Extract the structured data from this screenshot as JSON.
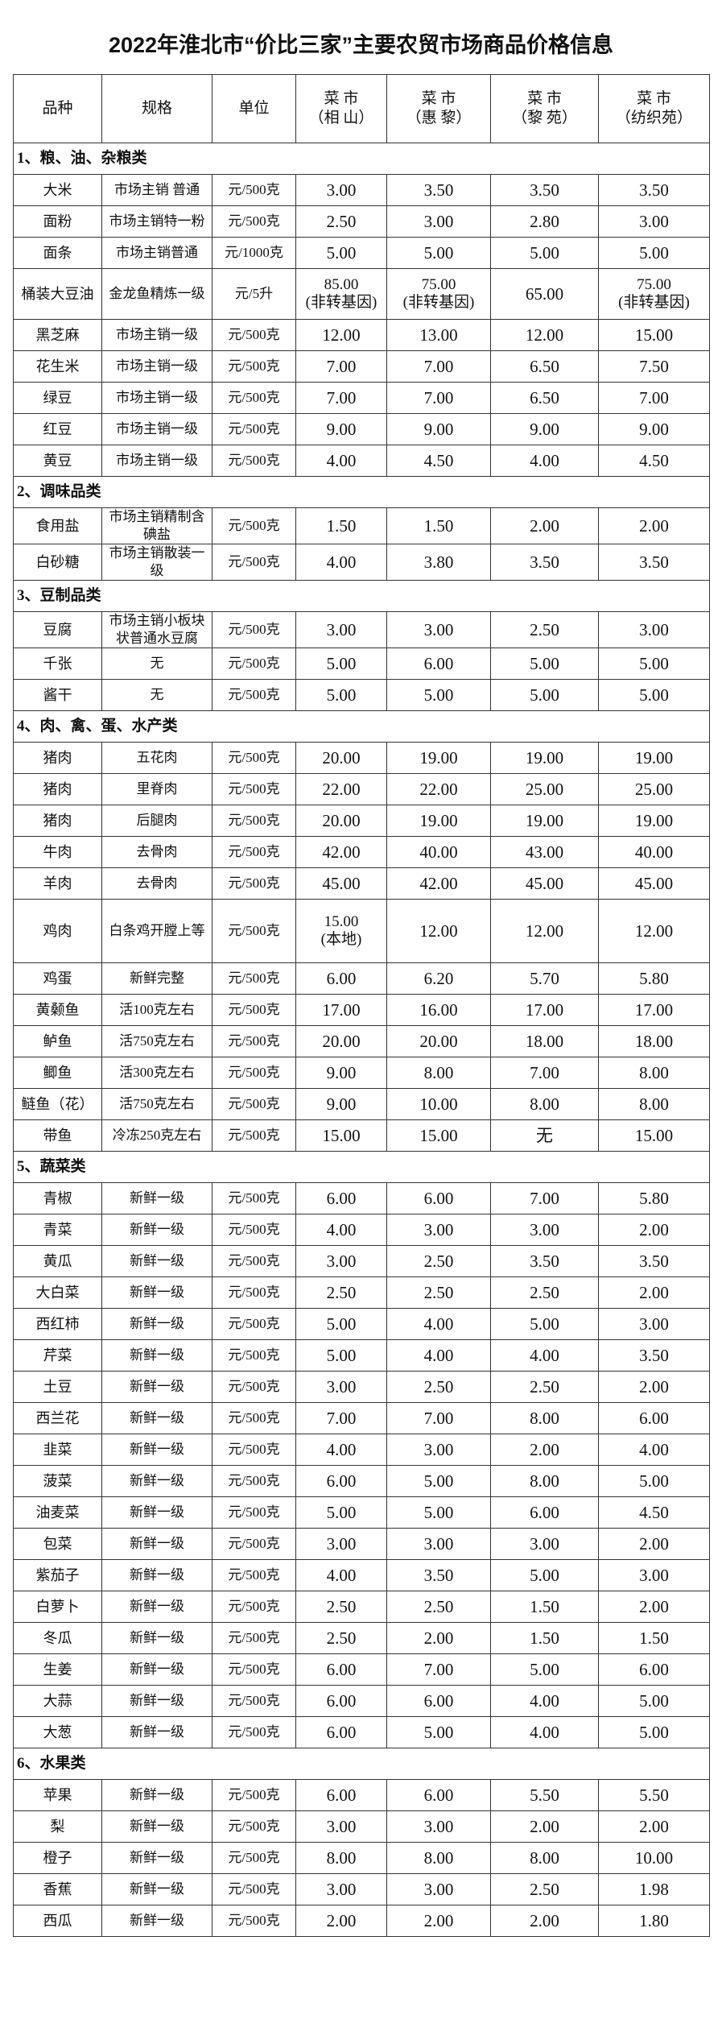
{
  "header": {
    "title": "2022年淮北市“价比三家”主要农贸市场商品价格信息"
  },
  "table": {
    "columns": [
      "品种",
      "规格",
      "单位",
      "菜 市\n（相 山）",
      "菜 市\n（惠 黎）",
      "菜 市\n（黎 苑）",
      "菜 市\n（纺织苑）"
    ],
    "sections": [
      {
        "title": "1、粮、油、杂粮类",
        "rows": [
          [
            "大米",
            "市场主销 普通",
            "元/500克",
            "3.00",
            "3.50",
            "3.50",
            "3.50"
          ],
          [
            "面粉",
            "市场主销特一粉",
            "元/500克",
            "2.50",
            "3.00",
            "2.80",
            "3.00"
          ],
          [
            "面条",
            "市场主销普通",
            "元/1000克",
            "5.00",
            "5.00",
            "5.00",
            "5.00"
          ],
          [
            "桶装大豆油",
            "金龙鱼精炼一级",
            "元/5升",
            "85.00\n(非转基因)",
            "75.00\n(非转基因)",
            "65.00",
            "75.00\n(非转基因)"
          ],
          [
            "黑芝麻",
            "市场主销一级",
            "元/500克",
            "12.00",
            "13.00",
            "12.00",
            "15.00"
          ],
          [
            "花生米",
            "市场主销一级",
            "元/500克",
            "7.00",
            "7.00",
            "6.50",
            "7.50"
          ],
          [
            "绿豆",
            "市场主销一级",
            "元/500克",
            "7.00",
            "7.00",
            "6.50",
            "7.00"
          ],
          [
            "红豆",
            "市场主销一级",
            "元/500克",
            "9.00",
            "9.00",
            "9.00",
            "9.00"
          ],
          [
            "黄豆",
            "市场主销一级",
            "元/500克",
            "4.00",
            "4.50",
            "4.00",
            "4.50"
          ]
        ]
      },
      {
        "title": "2、调味品类",
        "rows": [
          [
            "食用盐",
            "市场主销精制含碘盐",
            "元/500克",
            "1.50",
            "1.50",
            "2.00",
            "2.00"
          ],
          [
            "白砂糖",
            "市场主销散装一级",
            "元/500克",
            "4.00",
            "3.80",
            "3.50",
            "3.50"
          ]
        ]
      },
      {
        "title": "3、豆制品类",
        "rows": [
          [
            "豆腐",
            "市场主销小板块状普通水豆腐",
            "元/500克",
            "3.00",
            "3.00",
            "2.50",
            "3.00"
          ],
          [
            "千张",
            "无",
            "元/500克",
            "5.00",
            "6.00",
            "5.00",
            "5.00"
          ],
          [
            "酱干",
            "无",
            "元/500克",
            "5.00",
            "5.00",
            "5.00",
            "5.00"
          ]
        ]
      },
      {
        "title": "4、肉、禽、蛋、水产类",
        "rows": [
          [
            "猪肉",
            "五花肉",
            "元/500克",
            "20.00",
            "19.00",
            "19.00",
            "19.00"
          ],
          [
            "猪肉",
            "里脊肉",
            "元/500克",
            "22.00",
            "22.00",
            "25.00",
            "25.00"
          ],
          [
            "猪肉",
            "后腿肉",
            "元/500克",
            "20.00",
            "19.00",
            "19.00",
            "19.00"
          ],
          [
            "牛肉",
            "去骨肉",
            "元/500克",
            "42.00",
            "40.00",
            "43.00",
            "40.00"
          ],
          [
            "羊肉",
            "去骨肉",
            "元/500克",
            "45.00",
            "42.00",
            "45.00",
            "45.00"
          ],
          [
            "鸡肉",
            "白条鸡开膛上等",
            "元/500克",
            "15.00\n(本地)",
            "12.00",
            "12.00",
            "12.00"
          ],
          [
            "鸡蛋",
            "新鲜完整",
            "元/500克",
            "6.00",
            "6.20",
            "5.70",
            "5.80"
          ],
          [
            "黄颡鱼",
            "活100克左右",
            "元/500克",
            "17.00",
            "16.00",
            "17.00",
            "17.00"
          ],
          [
            "鲈鱼",
            "活750克左右",
            "元/500克",
            "20.00",
            "20.00",
            "18.00",
            "18.00"
          ],
          [
            "鲫鱼",
            "活300克左右",
            "元/500克",
            "9.00",
            "8.00",
            "7.00",
            "8.00"
          ],
          [
            "鲢鱼（花）",
            "活750克左右",
            "元/500克",
            "9.00",
            "10.00",
            "8.00",
            "8.00"
          ],
          [
            "带鱼",
            "冷冻250克左右",
            "元/500克",
            "15.00",
            "15.00",
            "无",
            "15.00"
          ]
        ]
      },
      {
        "title": "5、蔬菜类",
        "rows": [
          [
            "青椒",
            "新鲜一级",
            "元/500克",
            "6.00",
            "6.00",
            "7.00",
            "5.80"
          ],
          [
            "青菜",
            "新鲜一级",
            "元/500克",
            "4.00",
            "3.00",
            "3.00",
            "2.00"
          ],
          [
            "黄瓜",
            "新鲜一级",
            "元/500克",
            "3.00",
            "2.50",
            "3.50",
            "3.50"
          ],
          [
            "大白菜",
            "新鲜一级",
            "元/500克",
            "2.50",
            "2.50",
            "2.50",
            "2.00"
          ],
          [
            "西红柿",
            "新鲜一级",
            "元/500克",
            "5.00",
            "4.00",
            "5.00",
            "3.00"
          ],
          [
            "芹菜",
            "新鲜一级",
            "元/500克",
            "5.00",
            "4.00",
            "4.00",
            "3.50"
          ],
          [
            "土豆",
            "新鲜一级",
            "元/500克",
            "3.00",
            "2.50",
            "2.50",
            "2.00"
          ],
          [
            "西兰花",
            "新鲜一级",
            "元/500克",
            "7.00",
            "7.00",
            "8.00",
            "6.00"
          ],
          [
            "韭菜",
            "新鲜一级",
            "元/500克",
            "4.00",
            "3.00",
            "2.00",
            "4.00"
          ],
          [
            "菠菜",
            "新鲜一级",
            "元/500克",
            "6.00",
            "5.00",
            "8.00",
            "5.00"
          ],
          [
            "油麦菜",
            "新鲜一级",
            "元/500克",
            "5.00",
            "5.00",
            "6.00",
            "4.50"
          ],
          [
            "包菜",
            "新鲜一级",
            "元/500克",
            "3.00",
            "3.00",
            "3.00",
            "2.00"
          ],
          [
            "紫茄子",
            "新鲜一级",
            "元/500克",
            "4.00",
            "3.50",
            "5.00",
            "3.00"
          ],
          [
            "白萝卜",
            "新鲜一级",
            "元/500克",
            "2.50",
            "2.50",
            "1.50",
            "2.00"
          ],
          [
            "冬瓜",
            "新鲜一级",
            "元/500克",
            "2.50",
            "2.00",
            "1.50",
            "1.50"
          ],
          [
            "生姜",
            "新鲜一级",
            "元/500克",
            "6.00",
            "7.00",
            "5.00",
            "6.00"
          ],
          [
            "大蒜",
            "新鲜一级",
            "元/500克",
            "6.00",
            "6.00",
            "4.00",
            "5.00"
          ],
          [
            "大葱",
            "新鲜一级",
            "元/500克",
            "6.00",
            "5.00",
            "4.00",
            "5.00"
          ]
        ]
      },
      {
        "title": "6、水果类",
        "rows": [
          [
            "苹果",
            "新鲜一级",
            "元/500克",
            "6.00",
            "6.00",
            "5.50",
            "5.50"
          ],
          [
            "梨",
            "新鲜一级",
            "元/500克",
            "3.00",
            "3.00",
            "2.00",
            "2.00"
          ],
          [
            "橙子",
            "新鲜一级",
            "元/500克",
            "8.00",
            "8.00",
            "8.00",
            "10.00"
          ],
          [
            "香蕉",
            "新鲜一级",
            "元/500克",
            "3.00",
            "3.00",
            "2.50",
            "1.98"
          ],
          [
            "西瓜",
            "新鲜一级",
            "元/500克",
            "2.00",
            "2.00",
            "2.00",
            "1.80"
          ]
        ]
      }
    ]
  }
}
